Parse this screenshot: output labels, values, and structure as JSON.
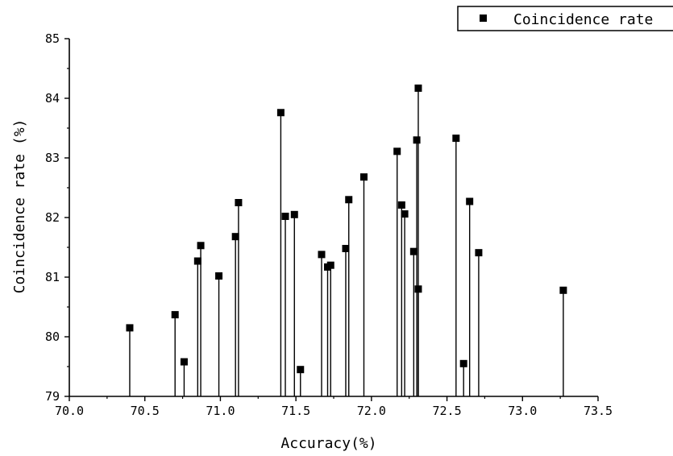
{
  "chart_data": {
    "type": "scatter",
    "title": "",
    "xlabel": "Accuracy(%)",
    "ylabel": "Coincidence rate (%)",
    "xlim": [
      70.0,
      73.5
    ],
    "ylim": [
      79,
      85
    ],
    "xticks": [
      "70.0",
      "70.5",
      "71.0",
      "71.5",
      "72.0",
      "72.5",
      "73.0",
      "73.5"
    ],
    "yticks": [
      "79",
      "80",
      "81",
      "82",
      "83",
      "84",
      "85"
    ],
    "grid": false,
    "legend_position": "top-right",
    "drop_lines": true,
    "series": [
      {
        "name": "Coincidence rate",
        "marker": "square",
        "color": "#000000",
        "points": [
          {
            "x": 70.4,
            "y": 80.15
          },
          {
            "x": 70.7,
            "y": 80.37
          },
          {
            "x": 70.76,
            "y": 79.58
          },
          {
            "x": 70.85,
            "y": 81.27
          },
          {
            "x": 70.87,
            "y": 81.53
          },
          {
            "x": 70.99,
            "y": 81.02
          },
          {
            "x": 71.1,
            "y": 81.68
          },
          {
            "x": 71.12,
            "y": 82.25
          },
          {
            "x": 71.4,
            "y": 83.76
          },
          {
            "x": 71.43,
            "y": 82.02
          },
          {
            "x": 71.49,
            "y": 82.05
          },
          {
            "x": 71.53,
            "y": 79.45
          },
          {
            "x": 71.67,
            "y": 81.38
          },
          {
            "x": 71.71,
            "y": 81.17
          },
          {
            "x": 71.73,
            "y": 81.2
          },
          {
            "x": 71.83,
            "y": 81.48
          },
          {
            "x": 71.85,
            "y": 82.3
          },
          {
            "x": 71.95,
            "y": 82.68
          },
          {
            "x": 72.17,
            "y": 83.11
          },
          {
            "x": 72.2,
            "y": 82.21
          },
          {
            "x": 72.22,
            "y": 82.06
          },
          {
            "x": 72.28,
            "y": 81.43
          },
          {
            "x": 72.3,
            "y": 83.3
          },
          {
            "x": 72.31,
            "y": 84.17
          },
          {
            "x": 72.31,
            "y": 80.8
          },
          {
            "x": 72.56,
            "y": 83.33
          },
          {
            "x": 72.61,
            "y": 79.55
          },
          {
            "x": 72.65,
            "y": 82.27
          },
          {
            "x": 72.71,
            "y": 81.41
          },
          {
            "x": 73.27,
            "y": 80.78
          }
        ]
      }
    ]
  }
}
